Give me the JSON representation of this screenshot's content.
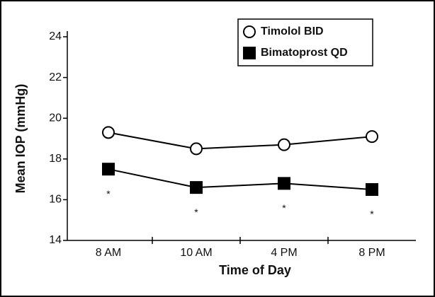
{
  "chart_data": {
    "type": "line",
    "x_label": "Time of Day",
    "y_label": "Mean IOP (mmHg)",
    "categories": [
      "8 AM",
      "10 AM",
      "4 PM",
      "8 PM"
    ],
    "series": [
      {
        "name": "Timolol BID",
        "color": "#000000",
        "marker": "open-circle",
        "values": [
          19.3,
          18.5,
          18.7,
          19.1
        ]
      },
      {
        "name": "Bimatoprost QD",
        "color": "#000000",
        "marker": "filled-square",
        "values": [
          17.5,
          16.6,
          16.8,
          16.5
        ]
      }
    ],
    "annotations": [
      "*",
      "*",
      "*",
      "*"
    ],
    "ylim": [
      14,
      24
    ],
    "yticks": [
      14,
      16,
      18,
      20,
      22,
      24
    ],
    "grid": false,
    "legend": "upper right"
  }
}
